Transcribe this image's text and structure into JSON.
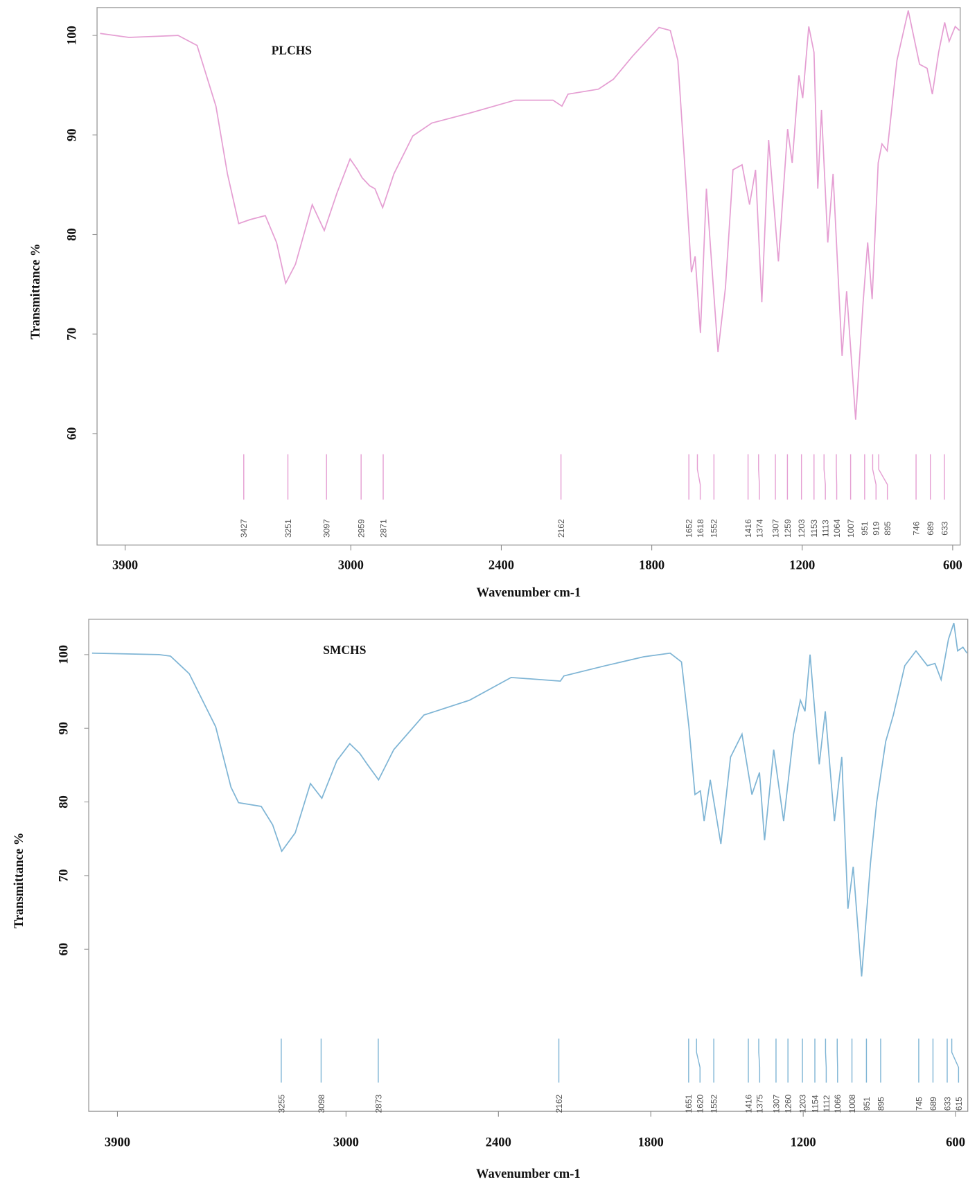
{
  "chart_data": [
    {
      "type": "line",
      "title": "PLCHS",
      "xlabel": "Wavenumber cm-1",
      "ylabel": "Transmittance %",
      "color": "#e59fd3",
      "xlim": [
        4012,
        570
      ],
      "ylim": [
        48.8,
        102.8
      ],
      "xticks": [
        3900,
        3000,
        2400,
        1800,
        1200,
        600
      ],
      "yticks": [
        60,
        70,
        80,
        90,
        100
      ],
      "x": [
        4000,
        3885,
        3689,
        3613,
        3538,
        3492,
        3447,
        3402,
        3341,
        3296,
        3260,
        3221,
        3154,
        3106,
        3055,
        3003,
        2973,
        2955,
        2925,
        2904,
        2873,
        2828,
        2753,
        2677,
        2526,
        2345,
        2194,
        2158,
        2134,
        2013,
        1953,
        1877,
        1771,
        1726,
        1696,
        1666,
        1642,
        1627,
        1606,
        1582,
        1561,
        1536,
        1506,
        1476,
        1440,
        1410,
        1386,
        1361,
        1334,
        1295,
        1258,
        1240,
        1213,
        1198,
        1174,
        1153,
        1138,
        1123,
        1098,
        1077,
        1041,
        1023,
        987,
        957,
        939,
        921,
        897,
        882,
        861,
        822,
        777,
        732,
        702,
        681,
        656,
        632,
        614,
        590,
        573
      ],
      "values": [
        100.2,
        99.8,
        100.0,
        99.0,
        92.9,
        86.1,
        81.1,
        81.5,
        81.9,
        79.2,
        75.1,
        77.0,
        83.0,
        80.4,
        84.2,
        87.6,
        86.5,
        85.7,
        84.9,
        84.6,
        82.7,
        86.1,
        89.9,
        91.2,
        92.2,
        93.5,
        93.5,
        92.9,
        94.1,
        94.6,
        95.6,
        97.9,
        100.8,
        100.5,
        97.5,
        86.1,
        76.2,
        77.8,
        70.1,
        84.6,
        77.0,
        68.2,
        74.7,
        86.5,
        87.0,
        83.0,
        86.5,
        73.2,
        89.5,
        77.3,
        90.6,
        87.2,
        96.0,
        93.7,
        100.9,
        98.3,
        84.6,
        92.5,
        79.2,
        86.1,
        67.8,
        74.3,
        61.4,
        73.2,
        79.2,
        73.5,
        87.2,
        89.1,
        88.4,
        97.5,
        102.5,
        97.1,
        96.7,
        94.1,
        98.3,
        101.3,
        99.4,
        100.9,
        100.5
      ],
      "peak_labels": [
        3427,
        3251,
        3097,
        2959,
        2871,
        2162,
        1652,
        1618,
        1552,
        1416,
        1374,
        1307,
        1259,
        1203,
        1153,
        1113,
        1064,
        1007,
        951,
        919,
        895,
        746,
        689,
        633
      ]
    },
    {
      "type": "line",
      "title": "SMCHS",
      "xlabel": "Wavenumber cm-1",
      "ylabel": "Transmittance %",
      "color": "#7fb5d5",
      "xlim": [
        4013,
        552
      ],
      "ylim": [
        38,
        104.8
      ],
      "xticks": [
        3900,
        3000,
        2400,
        1800,
        1200,
        600
      ],
      "yticks": [
        60,
        70,
        80,
        90,
        100
      ],
      "x": [
        4000,
        3736,
        3691,
        3617,
        3513,
        3453,
        3423,
        3334,
        3289,
        3253,
        3200,
        3140,
        3095,
        3036,
        2985,
        2946,
        2916,
        2872,
        2812,
        2693,
        2514,
        2350,
        2156,
        2142,
        1978,
        1828,
        1724,
        1679,
        1650,
        1626,
        1605,
        1590,
        1566,
        1524,
        1486,
        1441,
        1402,
        1372,
        1352,
        1316,
        1277,
        1238,
        1211,
        1193,
        1173,
        1137,
        1113,
        1077,
        1048,
        1024,
        1003,
        970,
        935,
        911,
        875,
        845,
        800,
        756,
        711,
        681,
        657,
        628,
        607,
        592,
        571,
        555
      ],
      "values": [
        100.2,
        100.0,
        99.8,
        97.4,
        90.2,
        82.0,
        79.9,
        79.4,
        76.9,
        73.3,
        75.8,
        82.5,
        80.5,
        85.6,
        87.9,
        86.6,
        85.1,
        83.0,
        87.1,
        91.8,
        93.8,
        96.9,
        96.4,
        97.1,
        98.5,
        99.7,
        100.2,
        99.0,
        90.2,
        81.0,
        81.5,
        77.4,
        83.0,
        74.3,
        86.1,
        89.2,
        81.0,
        84.0,
        74.8,
        87.1,
        77.4,
        89.2,
        93.8,
        92.3,
        100.0,
        85.1,
        92.3,
        77.4,
        86.1,
        65.5,
        71.2,
        56.3,
        71.7,
        79.9,
        88.2,
        91.8,
        98.5,
        100.5,
        98.5,
        98.8,
        96.6,
        102.1,
        104.3,
        100.5,
        101.0,
        100.2
      ],
      "peak_labels": [
        3255,
        3098,
        2873,
        2162,
        1651,
        1620,
        1552,
        1416,
        1375,
        1307,
        1260,
        1203,
        1154,
        1112,
        1066,
        1008,
        951,
        895,
        745,
        689,
        633,
        615
      ]
    }
  ]
}
